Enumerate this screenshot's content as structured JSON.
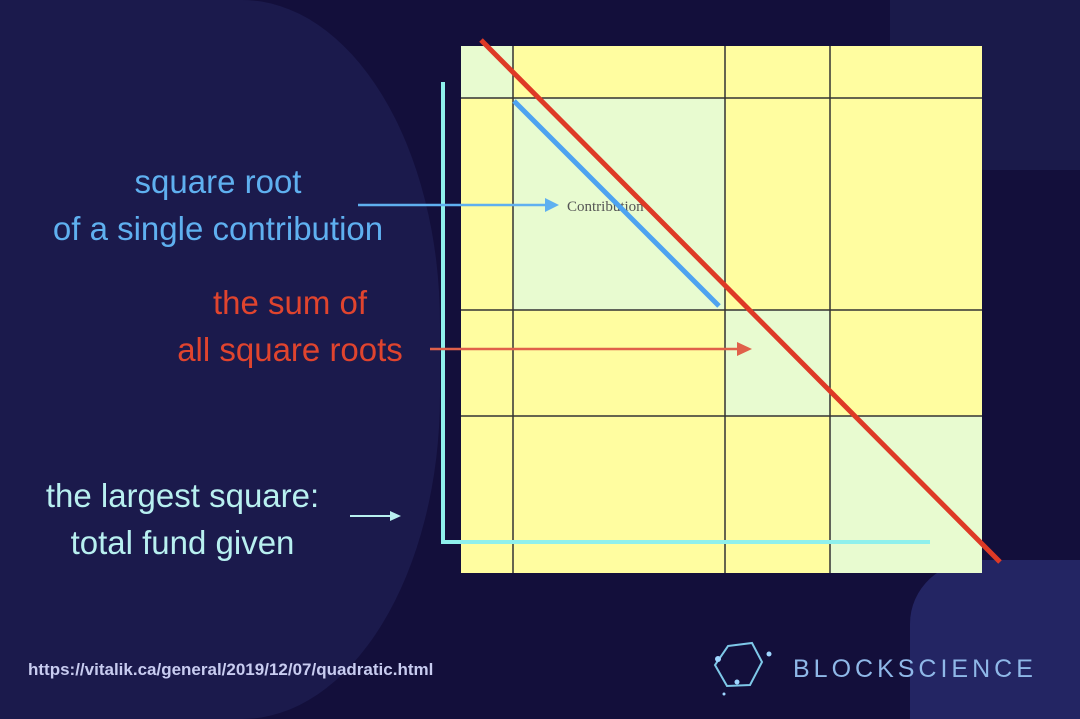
{
  "labels": {
    "sqrt_single_line1": "square root",
    "sqrt_single_line2": "of a single contribution",
    "sum_line1": "the sum of",
    "sum_line2": "all square roots",
    "largest_line1": "the largest square:",
    "largest_line2": "total fund given",
    "contribution": "Contribution"
  },
  "footer": {
    "url": "https://vitalik.ca/general/2019/12/07/quadratic.html",
    "logo_text": "BLOCKSCIENCE"
  },
  "colors": {
    "background": "#130f3b",
    "cell_yellow": "#fffda0",
    "cell_green": "#e8fbd0",
    "blue": "#4ea3f0",
    "red": "#de3a26",
    "cyan": "#8ff0ec",
    "sqrt_label": "#5fb0f0",
    "sum_label": "#e0442e",
    "largest_label": "#b8f0f0"
  }
}
